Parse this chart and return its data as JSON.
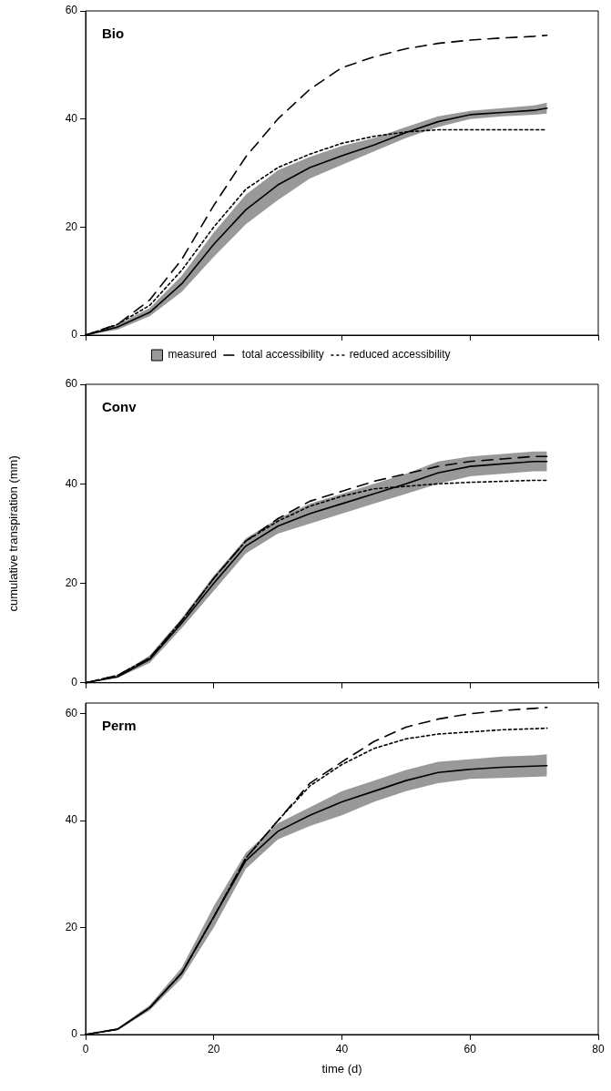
{
  "chart_data": [
    {
      "type": "line",
      "title": "Bio",
      "x": [
        0,
        5,
        10,
        15,
        20,
        25,
        30,
        35,
        40,
        45,
        50,
        55,
        60,
        65,
        70,
        72
      ],
      "xlim": [
        0,
        80
      ],
      "xticks": [
        0,
        20,
        40,
        60,
        80
      ],
      "ylim": [
        0,
        60
      ],
      "yticks": [
        0,
        20,
        40,
        60
      ],
      "tick_labels": "y",
      "legend": "bottom",
      "series": [
        {
          "name": "measured",
          "color": "#000000",
          "values": [
            0,
            1.5,
            4.2,
            9.5,
            16.8,
            23.2,
            27.8,
            31,
            33.2,
            35.2,
            37.5,
            39.5,
            40.8,
            41.2,
            41.6,
            42
          ],
          "lower": [
            0,
            1,
            3.5,
            8,
            14.5,
            20.5,
            25,
            29,
            31.5,
            34,
            36.5,
            38.5,
            40,
            40.5,
            40.8,
            41
          ],
          "upper": [
            0,
            2,
            5,
            11,
            19,
            26,
            30.5,
            33,
            35,
            36.5,
            38.5,
            40.5,
            41.5,
            42,
            42.5,
            43
          ]
        },
        {
          "name": "total accessibility",
          "color": "#000000",
          "line_style": "dashed",
          "values": [
            0,
            2,
            6.5,
            14,
            24,
            33,
            40,
            45.5,
            49.5,
            51.5,
            53,
            54,
            54.6,
            55,
            55.3,
            55.5
          ]
        },
        {
          "name": "reduced accessibility",
          "color": "#000000",
          "line_style": "dotted",
          "values": [
            0,
            2,
            5.5,
            12,
            20,
            27,
            31,
            33.5,
            35.5,
            36.8,
            37.6,
            38,
            38,
            38,
            38,
            38
          ]
        }
      ]
    },
    {
      "type": "line",
      "title": "Conv",
      "ylabel": "cumulative transpiration (mm)",
      "x": [
        0,
        5,
        10,
        15,
        20,
        25,
        30,
        35,
        40,
        45,
        50,
        55,
        60,
        65,
        70,
        72
      ],
      "xlim": [
        0,
        80
      ],
      "xticks": [
        0,
        20,
        40,
        60,
        80
      ],
      "ylim": [
        0,
        60
      ],
      "yticks": [
        0,
        20,
        40,
        60
      ],
      "tick_labels": "y",
      "series": [
        {
          "color": "#000000",
          "values": [
            0,
            1.2,
            4.7,
            12,
            20,
            27.5,
            31.5,
            34,
            36,
            38,
            40,
            42.2,
            43.5,
            44,
            44.5,
            44.5
          ],
          "lower": [
            0,
            1,
            4,
            11,
            18.5,
            26,
            30,
            32,
            34,
            36,
            38,
            40,
            41.5,
            42,
            42.5,
            42.5
          ],
          "upper": [
            0,
            1.5,
            5.5,
            13,
            21.5,
            29,
            33,
            36,
            38,
            40,
            42,
            44.5,
            45.5,
            46,
            46.5,
            46.5
          ]
        },
        {
          "color": "#000000",
          "line_style": "dashed",
          "values": [
            0,
            1.5,
            5,
            12.5,
            21,
            28.5,
            33,
            36.5,
            38.5,
            40.5,
            42,
            43.5,
            44.5,
            45,
            45.5,
            45.5
          ]
        },
        {
          "color": "#000000",
          "line_style": "dotted",
          "values": [
            0,
            1.5,
            5,
            12.5,
            21,
            28.5,
            32.5,
            35.5,
            37.5,
            39,
            39.5,
            40,
            40.3,
            40.5,
            40.7,
            40.7
          ]
        }
      ]
    },
    {
      "type": "line",
      "title": "Perm",
      "xlabel": "time (d)",
      "x": [
        0,
        5,
        10,
        15,
        20,
        25,
        30,
        35,
        40,
        45,
        50,
        55,
        60,
        65,
        70,
        72
      ],
      "xlim": [
        0,
        80
      ],
      "xticks": [
        0,
        20,
        40,
        60,
        80
      ],
      "ylim": [
        0,
        62
      ],
      "yticks": [
        0,
        20,
        40,
        60
      ],
      "series": [
        {
          "color": "#000000",
          "values": [
            0,
            1,
            5,
            11.5,
            22,
            32.5,
            38,
            41,
            43.5,
            45.5,
            47.5,
            49,
            49.6,
            50,
            50.2,
            50.3
          ],
          "lower": [
            0,
            0.8,
            4.5,
            10.5,
            20,
            31,
            36.5,
            39,
            41,
            43.5,
            45.5,
            47,
            47.8,
            48,
            48.2,
            48.3
          ],
          "upper": [
            0,
            1.2,
            5.5,
            12.5,
            24,
            34,
            39.5,
            42.5,
            45.5,
            47.5,
            49.5,
            51,
            51.5,
            52,
            52.2,
            52.4
          ]
        },
        {
          "color": "#000000",
          "line_style": "dashed",
          "values": [
            0,
            1,
            5,
            11.5,
            22,
            33,
            40,
            47,
            51,
            54.8,
            57.5,
            59,
            60,
            60.6,
            61,
            61.2
          ]
        },
        {
          "color": "#000000",
          "line_style": "dotted",
          "values": [
            0,
            1,
            5,
            11.5,
            22,
            33,
            40,
            46.5,
            50.5,
            53.5,
            55.3,
            56.2,
            56.6,
            57,
            57.2,
            57.3
          ]
        }
      ]
    }
  ]
}
